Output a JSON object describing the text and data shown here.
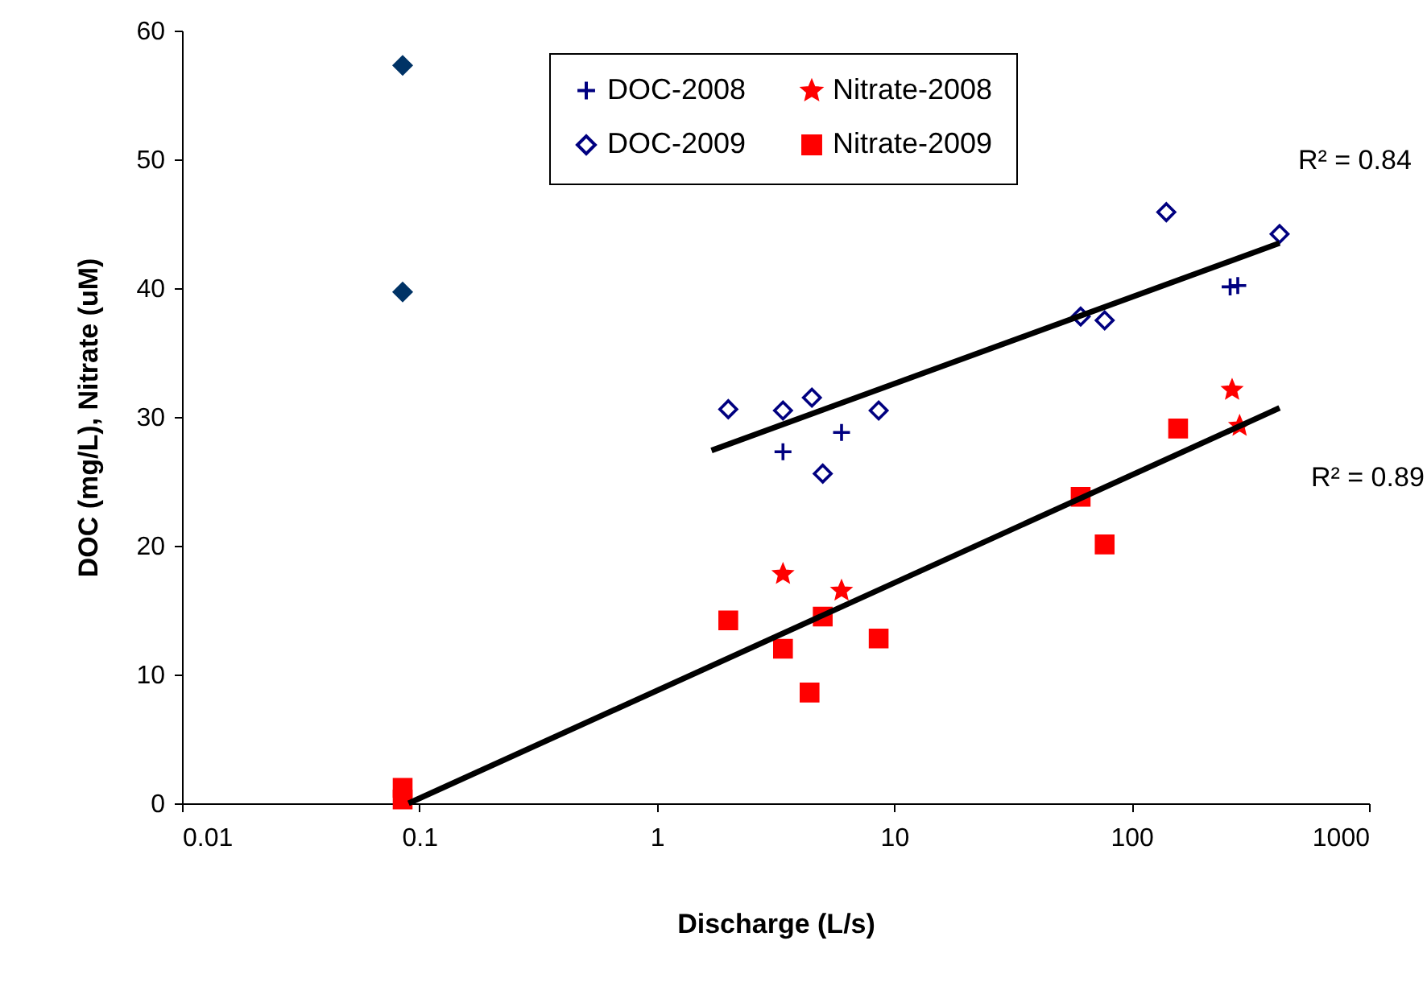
{
  "chart_data": {
    "type": "scatter",
    "xlabel": "Discharge (L/s)",
    "ylabel": "DOC (mg/L), Nitrate (uM)",
    "log": "x",
    "xlim": [
      0.01,
      1000
    ],
    "xticks": [
      0.01,
      0.1,
      1,
      10,
      100,
      1000
    ],
    "ylim": [
      0,
      60
    ],
    "yticks": [
      0,
      10,
      20,
      30,
      40,
      50,
      60
    ],
    "grid": false,
    "legend": "top",
    "annotations": [
      "R² = 0.84",
      "R² = 0.89"
    ],
    "series": [
      {
        "name": "DOC-2008",
        "color": "#000080",
        "marker": "cross",
        "x": [
          3.4,
          6.0,
          260,
          280
        ],
        "values": [
          27.3,
          28.8,
          40.1,
          40.2
        ]
      },
      {
        "name": "DOC-2009",
        "color": "#000080",
        "marker": "diamond",
        "x": [
          2.0,
          3.4,
          4.5,
          5.0,
          8.6,
          61,
          77,
          140,
          420
        ],
        "values": [
          30.6,
          30.5,
          31.5,
          25.6,
          30.5,
          37.8,
          37.5,
          45.9,
          44.2
        ]
      },
      {
        "name": "Nitrate-2008",
        "color": "#ff0000",
        "marker": "star",
        "x": [
          3.4,
          6.0,
          265,
          285
        ],
        "values": [
          17.8,
          16.5,
          32.1,
          29.3
        ]
      },
      {
        "name": "Nitrate-2009",
        "color": "#ff0000",
        "marker": "square",
        "x": [
          0.085,
          0.085,
          2.0,
          3.4,
          4.4,
          5.0,
          8.6,
          61,
          77,
          157
        ],
        "values": [
          1.2,
          0.3,
          14.2,
          12.0,
          8.6,
          14.5,
          12.8,
          23.8,
          20.1,
          29.1
        ]
      },
      {
        "color": "#003366",
        "marker": "diamond",
        "x": [
          0.085,
          0.085
        ],
        "values": [
          57.3,
          39.7
        ]
      },
      {
        "type": "line",
        "color": "#000000",
        "marker": "none",
        "x": [
          1.7,
          420
        ],
        "values": [
          27.4,
          43.5
        ]
      },
      {
        "type": "line",
        "color": "#000000",
        "marker": "none",
        "x": [
          0.09,
          420
        ],
        "values": [
          0,
          30.7
        ]
      }
    ]
  }
}
